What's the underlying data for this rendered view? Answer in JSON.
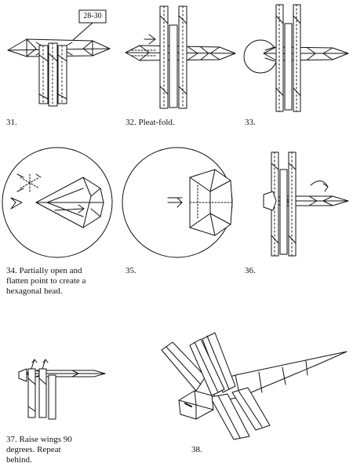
{
  "steps": [
    {
      "number": "31.",
      "lines": []
    },
    {
      "number": "32.",
      "lines": [
        "Pleat-fold."
      ]
    },
    {
      "number": "33.",
      "lines": []
    },
    {
      "number": "34.",
      "lines": [
        "Partially open and",
        "flatten point to create a",
        "hexagonal head."
      ]
    },
    {
      "number": "35.",
      "lines": []
    },
    {
      "number": "36.",
      "lines": []
    },
    {
      "number": "37.",
      "lines": [
        "Raise wings 90",
        "degrees. Repeat",
        "behind."
      ]
    },
    {
      "number": "38.",
      "lines": []
    }
  ],
  "ref_label": "28-30",
  "colors": {
    "ink": "#111111",
    "paper": "#ffffff"
  },
  "icons": [
    "arrow-icon",
    "pleat-fold-symbol",
    "zoom-circle"
  ]
}
